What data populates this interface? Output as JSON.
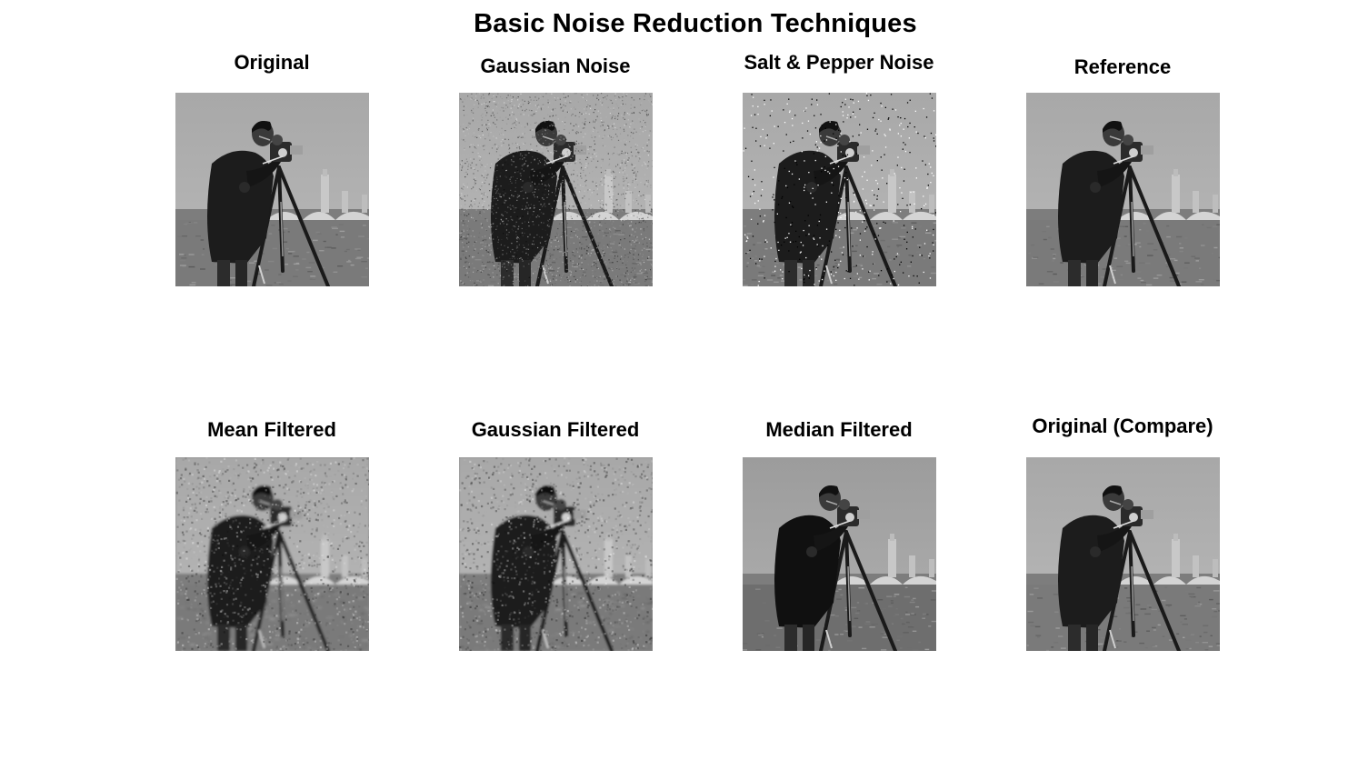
{
  "figure": {
    "title": "Basic Noise Reduction Techniques"
  },
  "panels": [
    {
      "title": "Original",
      "image": "cameraman-original",
      "variant": "clean"
    },
    {
      "title": "Gaussian Noise",
      "image": "cameraman-gaussian-noise",
      "variant": "gaussian"
    },
    {
      "title": "Salt & Pepper Noise",
      "image": "cameraman-salt-pepper-noise",
      "variant": "saltpepper"
    },
    {
      "title": "Reference",
      "image": "cameraman-reference",
      "variant": "clean"
    },
    {
      "title": "Mean Filtered",
      "image": "cameraman-mean-filtered",
      "variant": "mean"
    },
    {
      "title": "Gaussian Filtered",
      "image": "cameraman-gaussian-filtered",
      "variant": "gaussfilt"
    },
    {
      "title": "Median Filtered",
      "image": "cameraman-median-filtered",
      "variant": "median"
    },
    {
      "title": "Original (Compare)",
      "image": "cameraman-original-compare",
      "variant": "clean"
    }
  ],
  "colors": {
    "background": "#ffffff",
    "text": "#000000"
  }
}
